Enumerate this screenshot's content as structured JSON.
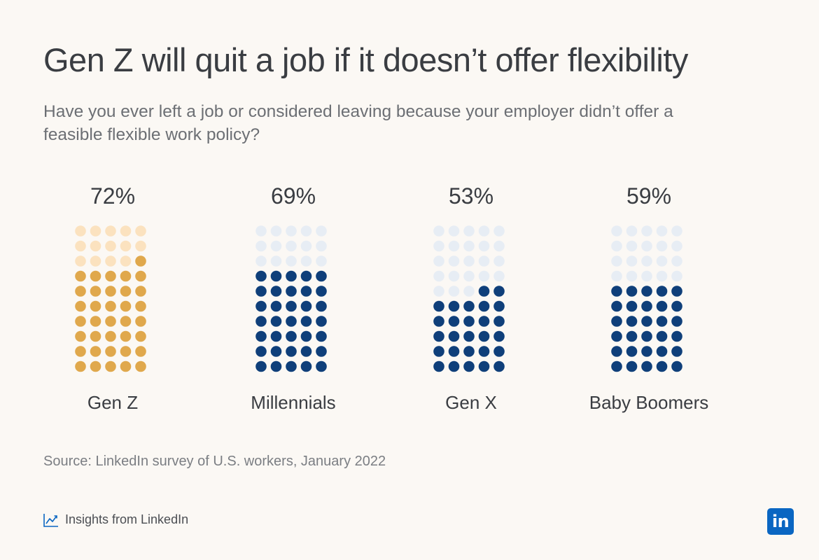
{
  "colors": {
    "gen_z_filled": "#e0a84c",
    "gen_z_empty": "#fbe2bf",
    "others_filled": "#0f3f7a",
    "others_empty": "#e7edf4",
    "linkedin_blue": "#0a66c2"
  },
  "chart_data": {
    "type": "waffle",
    "title": "Gen Z will quit a job if it doesn’t offer flexibility",
    "subtitle": "Have you ever left a job or considered leaving because your employer didn’t offer a feasible flexible work policy?",
    "dots_per_chart": 50,
    "columns": 5,
    "categories": [
      "Gen Z",
      "Millennials",
      "Gen X",
      "Baby Boomers"
    ],
    "values": [
      72,
      69,
      53,
      59
    ],
    "value_labels": [
      "72%",
      "69%",
      "53%",
      "59%"
    ],
    "unit": "%"
  },
  "source": "Source: LinkedIn survey of U.S. workers, January 2022",
  "footer": {
    "label": "Insights from LinkedIn",
    "icon": "trend-chart-icon"
  },
  "logo": {
    "text": "in",
    "icon": "linkedin-logo"
  }
}
